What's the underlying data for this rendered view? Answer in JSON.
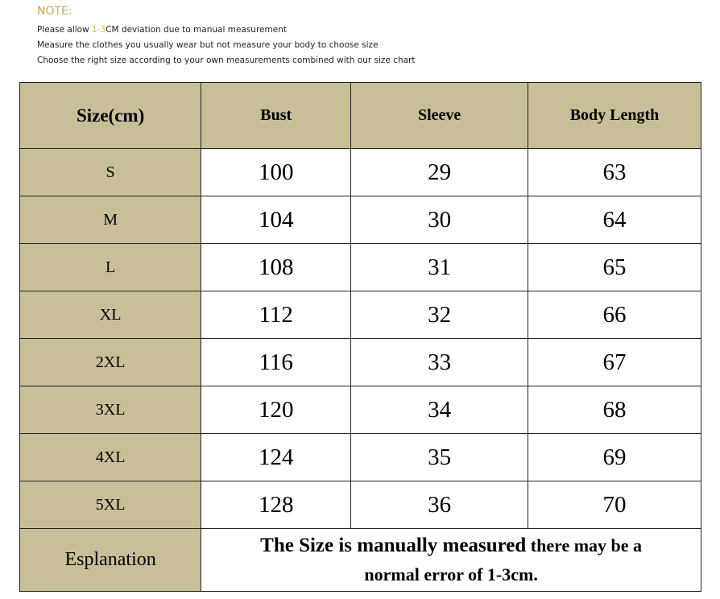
{
  "note": {
    "title": "NOTE:",
    "line1_pre": "Please allow ",
    "line1_highlight": "1-3",
    "line1_post": "CM deviation due to manual measurement",
    "line2": "Measure the clothes you usually wear but not measure your body to choose size",
    "line3": "Choose the right size according to your own measurements combined with our size chart"
  },
  "table": {
    "headers": [
      "Size(cm)",
      "Bust",
      "Sleeve",
      "Body Length"
    ],
    "rows": [
      [
        "S",
        "100",
        "29",
        "63"
      ],
      [
        "M",
        "104",
        "30",
        "64"
      ],
      [
        "L",
        "108",
        "31",
        "65"
      ],
      [
        "XL",
        "112",
        "32",
        "66"
      ],
      [
        "2XL",
        "116",
        "33",
        "67"
      ],
      [
        "3XL",
        "120",
        "34",
        "68"
      ],
      [
        "4XL",
        "124",
        "35",
        "69"
      ],
      [
        "5XL",
        "128",
        "36",
        "70"
      ]
    ],
    "explanation_label": "Esplanation",
    "explanation_big": "The Size is manually measured",
    "explanation_small1": " there may be a",
    "explanation_line2": "normal error of 1-3cm."
  },
  "colors": {
    "header_bg": "#c8bf99",
    "highlight": "#e0b860"
  }
}
